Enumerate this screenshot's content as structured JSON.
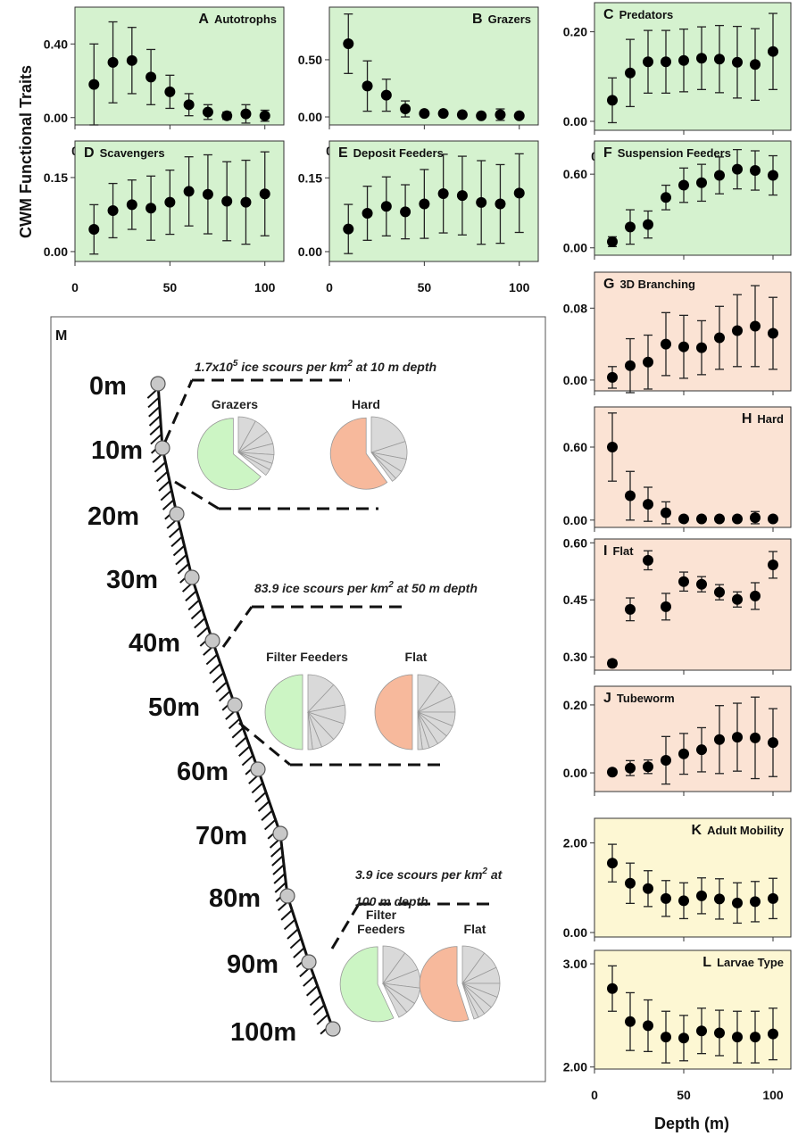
{
  "figure": {
    "y_axis_title": "CWM Functional Traits",
    "x_axis_title": "Depth (m)"
  },
  "colors": {
    "green": "#d5f2cf",
    "orange": "#fbe3d4",
    "yellow": "#fdf7d3",
    "pie_green": "#ccf5c4",
    "pie_orange": "#f7b99c",
    "pie_gray": "#d9d9d9",
    "marker": "#000000"
  },
  "chart_data": [
    {
      "id": "A",
      "type": "scatter",
      "title": "Autotrophs",
      "bg": "green",
      "x": [
        10,
        20,
        30,
        40,
        50,
        60,
        70,
        80,
        90,
        100
      ],
      "y": [
        0.18,
        0.3,
        0.31,
        0.22,
        0.14,
        0.07,
        0.03,
        0.01,
        0.02,
        0.01
      ],
      "err": [
        0.22,
        0.22,
        0.18,
        0.15,
        0.09,
        0.06,
        0.04,
        0.02,
        0.05,
        0.03
      ],
      "xlim": [
        0,
        110
      ],
      "ylim": [
        -0.04,
        0.6
      ],
      "yticks": [
        0.0,
        0.4
      ],
      "ytick_labels": [
        "0.00",
        "0.40"
      ],
      "xticks": [
        0,
        50,
        100
      ],
      "xtick_labels": [
        "0",
        "50",
        "100"
      ],
      "show_x_ticks": true
    },
    {
      "id": "B",
      "type": "scatter",
      "title": "Grazers",
      "bg": "green",
      "x": [
        10,
        20,
        30,
        40,
        50,
        60,
        70,
        80,
        90,
        100
      ],
      "y": [
        0.64,
        0.27,
        0.19,
        0.07,
        0.03,
        0.03,
        0.02,
        0.01,
        0.02,
        0.01
      ],
      "err": [
        0.26,
        0.22,
        0.14,
        0.07,
        0.02,
        0.02,
        0.01,
        0.01,
        0.05,
        0.02
      ],
      "xlim": [
        0,
        110
      ],
      "ylim": [
        -0.07,
        0.96
      ],
      "yticks": [
        0.0,
        0.5
      ],
      "ytick_labels": [
        "0.00",
        "0.50"
      ],
      "xticks": [
        0,
        50,
        100
      ],
      "xtick_labels": [
        "0",
        "50",
        "100"
      ],
      "show_x_ticks": true
    },
    {
      "id": "C",
      "type": "scatter",
      "title": "Predators",
      "bg": "green",
      "x": [
        10,
        20,
        30,
        40,
        50,
        60,
        70,
        80,
        90,
        100
      ],
      "y": [
        0.047,
        0.108,
        0.133,
        0.133,
        0.136,
        0.141,
        0.139,
        0.132,
        0.127,
        0.156
      ],
      "err": [
        0.05,
        0.075,
        0.07,
        0.07,
        0.07,
        0.07,
        0.075,
        0.08,
        0.08,
        0.085
      ],
      "xlim": [
        0,
        110
      ],
      "ylim": [
        -0.02,
        0.265
      ],
      "yticks": [
        0.0,
        0.2
      ],
      "ytick_labels": [
        "0.00",
        "0.20"
      ],
      "xticks": [
        0,
        50,
        100
      ],
      "xtick_labels": [
        "0",
        "50",
        "100"
      ],
      "show_x_ticks": true
    },
    {
      "id": "D",
      "type": "scatter",
      "title": "Scavengers",
      "bg": "green",
      "x": [
        10,
        20,
        30,
        40,
        50,
        60,
        70,
        80,
        90,
        100
      ],
      "y": [
        0.045,
        0.083,
        0.095,
        0.088,
        0.1,
        0.122,
        0.116,
        0.102,
        0.1,
        0.117
      ],
      "err": [
        0.05,
        0.055,
        0.05,
        0.065,
        0.065,
        0.07,
        0.08,
        0.08,
        0.085,
        0.085
      ],
      "xlim": [
        0,
        110
      ],
      "ylim": [
        -0.02,
        0.224
      ],
      "yticks": [
        0.0,
        0.15
      ],
      "ytick_labels": [
        "0.00",
        "0.15"
      ],
      "xticks": [
        0,
        50,
        100
      ],
      "xtick_labels": [
        "0",
        "50",
        "100"
      ],
      "show_x_ticks": true
    },
    {
      "id": "E",
      "type": "scatter",
      "title": "Deposit Feeders",
      "bg": "green",
      "x": [
        10,
        20,
        30,
        40,
        50,
        60,
        70,
        80,
        90,
        100
      ],
      "y": [
        0.046,
        0.078,
        0.092,
        0.081,
        0.097,
        0.118,
        0.114,
        0.1,
        0.097,
        0.119
      ],
      "err": [
        0.05,
        0.055,
        0.06,
        0.055,
        0.07,
        0.08,
        0.08,
        0.085,
        0.08,
        0.08
      ],
      "xlim": [
        0,
        110
      ],
      "ylim": [
        -0.02,
        0.225
      ],
      "yticks": [
        0.0,
        0.15
      ],
      "ytick_labels": [
        "0.00",
        "0.15"
      ],
      "xticks": [
        0,
        50,
        100
      ],
      "xtick_labels": [
        "0",
        "50",
        "100"
      ],
      "show_x_ticks": true
    },
    {
      "id": "F",
      "type": "scatter",
      "title": "Suspension Feeders",
      "bg": "green",
      "x": [
        10,
        20,
        30,
        40,
        50,
        60,
        70,
        80,
        90,
        100
      ],
      "y": [
        0.05,
        0.17,
        0.19,
        0.41,
        0.51,
        0.53,
        0.59,
        0.64,
        0.63,
        0.59
      ],
      "err": [
        0.04,
        0.14,
        0.11,
        0.1,
        0.14,
        0.15,
        0.15,
        0.16,
        0.16,
        0.16
      ],
      "xlim": [
        0,
        110
      ],
      "ylim": [
        -0.06,
        0.87
      ],
      "yticks": [
        0.0,
        0.6
      ],
      "ytick_labels": [
        "0.00",
        "0.60"
      ],
      "xticks": [
        0,
        50,
        100
      ],
      "xtick_labels": [
        "0",
        "50",
        "100"
      ],
      "show_x_ticks": false
    },
    {
      "id": "G",
      "type": "scatter",
      "title": "3D Branching",
      "bg": "orange",
      "x": [
        10,
        20,
        30,
        40,
        50,
        60,
        70,
        80,
        90,
        100
      ],
      "y": [
        0.003,
        0.016,
        0.02,
        0.04,
        0.037,
        0.036,
        0.047,
        0.055,
        0.06,
        0.052
      ],
      "err": [
        0.012,
        0.03,
        0.03,
        0.035,
        0.035,
        0.03,
        0.035,
        0.04,
        0.045,
        0.04
      ],
      "xlim": [
        0,
        110
      ],
      "ylim": [
        -0.012,
        0.12
      ],
      "yticks": [
        0.0,
        0.08
      ],
      "ytick_labels": [
        "0.00",
        "0.08"
      ],
      "xticks": [
        0,
        50,
        100
      ],
      "xtick_labels": [
        "0",
        "50",
        "100"
      ],
      "show_x_ticks": false
    },
    {
      "id": "H",
      "type": "scatter",
      "title": "Hard",
      "bg": "orange",
      "x": [
        10,
        20,
        30,
        40,
        50,
        60,
        70,
        80,
        90,
        100
      ],
      "y": [
        0.6,
        0.2,
        0.13,
        0.06,
        0.01,
        0.01,
        0.01,
        0.01,
        0.02,
        0.01
      ],
      "err": [
        0.28,
        0.2,
        0.14,
        0.09,
        0.01,
        0.01,
        0.01,
        0.01,
        0.05,
        0.02
      ],
      "xlim": [
        0,
        110
      ],
      "ylim": [
        -0.06,
        0.93
      ],
      "yticks": [
        0.0,
        0.6
      ],
      "ytick_labels": [
        "0.00",
        "0.60"
      ],
      "xticks": [
        0,
        50,
        100
      ],
      "xtick_labels": [
        "0",
        "50",
        "100"
      ],
      "show_x_ticks": false
    },
    {
      "id": "I",
      "type": "scatter",
      "title": "Flat",
      "bg": "orange",
      "x": [
        10,
        20,
        30,
        40,
        50,
        60,
        70,
        80,
        90,
        100
      ],
      "y": [
        0.283,
        0.425,
        0.554,
        0.432,
        0.498,
        0.491,
        0.47,
        0.451,
        0.46,
        0.542
      ],
      "err": [
        0.008,
        0.03,
        0.025,
        0.035,
        0.025,
        0.02,
        0.02,
        0.02,
        0.035,
        0.035
      ],
      "xlim": [
        0,
        110
      ],
      "ylim": [
        0.265,
        0.61
      ],
      "yticks": [
        0.3,
        0.45,
        0.6
      ],
      "ytick_labels": [
        "0.30",
        "0.45",
        "0.60"
      ],
      "xticks": [
        0,
        50,
        100
      ],
      "xtick_labels": [
        "0",
        "50",
        "100"
      ],
      "show_x_ticks": false
    },
    {
      "id": "J",
      "type": "scatter",
      "title": "Tubeworm",
      "bg": "orange",
      "x": [
        10,
        20,
        30,
        40,
        50,
        60,
        70,
        80,
        90,
        100
      ],
      "y": [
        0.002,
        0.014,
        0.018,
        0.037,
        0.056,
        0.068,
        0.098,
        0.105,
        0.103,
        0.089
      ],
      "err": [
        0.006,
        0.022,
        0.02,
        0.07,
        0.06,
        0.065,
        0.1,
        0.1,
        0.12,
        0.1
      ],
      "xlim": [
        0,
        110
      ],
      "ylim": [
        -0.055,
        0.255
      ],
      "yticks": [
        0.0,
        0.2
      ],
      "ytick_labels": [
        "0.00",
        "0.20"
      ],
      "xticks": [
        0,
        50,
        100
      ],
      "xtick_labels": [
        "0",
        "50",
        "100"
      ],
      "show_x_ticks": false
    },
    {
      "id": "K",
      "type": "scatter",
      "title": "Adult Mobility",
      "bg": "yellow",
      "x": [
        10,
        20,
        30,
        40,
        50,
        60,
        70,
        80,
        90,
        100
      ],
      "y": [
        1.55,
        1.1,
        0.98,
        0.76,
        0.71,
        0.82,
        0.75,
        0.66,
        0.69,
        0.76
      ],
      "err": [
        0.42,
        0.45,
        0.4,
        0.4,
        0.4,
        0.4,
        0.45,
        0.45,
        0.45,
        0.45
      ],
      "xlim": [
        0,
        110
      ],
      "ylim": [
        -0.1,
        2.55
      ],
      "yticks": [
        0.0,
        2.0
      ],
      "ytick_labels": [
        "0.00",
        "2.00"
      ],
      "xticks": [
        0,
        50,
        100
      ],
      "xtick_labels": [
        "0",
        "50",
        "100"
      ],
      "show_x_ticks": false
    },
    {
      "id": "L",
      "type": "scatter",
      "title": "Larvae Type",
      "bg": "yellow",
      "x": [
        10,
        20,
        30,
        40,
        50,
        60,
        70,
        80,
        90,
        100
      ],
      "y": [
        2.76,
        2.44,
        2.4,
        2.29,
        2.28,
        2.35,
        2.33,
        2.29,
        2.29,
        2.32
      ],
      "err": [
        0.22,
        0.28,
        0.25,
        0.25,
        0.22,
        0.22,
        0.22,
        0.25,
        0.25,
        0.25
      ],
      "xlim": [
        0,
        110
      ],
      "ylim": [
        1.98,
        3.13
      ],
      "yticks": [
        2.0,
        3.0
      ],
      "ytick_labels": [
        "2.00",
        "3.00"
      ],
      "xticks": [
        0,
        50,
        100
      ],
      "xtick_labels": [
        "0",
        "50",
        "100"
      ],
      "show_x_ticks": true
    }
  ],
  "schematic": {
    "label": "M",
    "depth_labels": [
      "0m",
      "10m",
      "20m",
      "30m",
      "40m",
      "50m",
      "60m",
      "70m",
      "80m",
      "90m",
      "100m"
    ],
    "callouts": [
      {
        "text_main": "1.7x10",
        "text_sup": "5",
        "text_rest": " ice scours per km",
        "text_sup2": "2",
        "text_end": " at 10 m depth",
        "pie_labels": [
          "Grazers",
          "Hard"
        ],
        "pies": [
          {
            "color": "pie_green",
            "fraction": 0.64,
            "slices": [
              0.08,
              0.07,
              0.06,
              0.05,
              0.04,
              0.03,
              0.03
            ]
          },
          {
            "color": "pie_orange",
            "fraction": 0.6,
            "slices": [
              0.2,
              0.08,
              0.06,
              0.04,
              0.02
            ]
          }
        ]
      },
      {
        "text_main": "83.9 ice scours per km",
        "text_sup": "2",
        "text_rest": " at 50 m depth",
        "pie_labels": [
          "Filter Feeders",
          "Flat"
        ],
        "pies": [
          {
            "color": "pie_green",
            "fraction": 0.5,
            "slices": [
              0.12,
              0.1,
              0.08,
              0.08,
              0.06,
              0.04,
              0.02
            ]
          },
          {
            "color": "pie_orange",
            "fraction": 0.5,
            "slices": [
              0.1,
              0.08,
              0.07,
              0.06,
              0.05,
              0.05,
              0.04,
              0.03,
              0.02
            ]
          }
        ]
      },
      {
        "text_main": "3.9 ice scours per km",
        "text_sup": "2",
        "text_rest": " at",
        "text_line2": "100 m depth",
        "pie_labels": [
          "Filter",
          "Feeders",
          "Flat"
        ],
        "pies": [
          {
            "color": "pie_green",
            "fraction": 0.57,
            "slices": [
              0.1,
              0.09,
              0.08,
              0.07,
              0.05,
              0.04
            ]
          },
          {
            "color": "pie_orange",
            "fraction": 0.55,
            "slices": [
              0.1,
              0.08,
              0.07,
              0.06,
              0.05,
              0.04,
              0.03,
              0.02
            ]
          }
        ]
      }
    ]
  }
}
